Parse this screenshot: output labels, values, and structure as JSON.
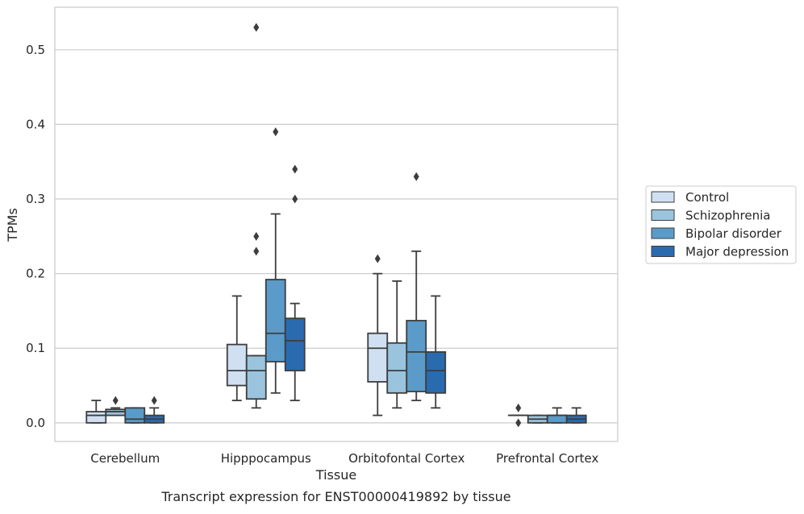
{
  "caption": "Transcript expression for ENST00000419892 by tissue",
  "chart_data": {
    "type": "box",
    "xlabel": "Tissue",
    "ylabel": "TPMs",
    "ylim": [
      -0.025,
      0.557
    ],
    "yticks": [
      "0.0",
      "0.1",
      "0.2",
      "0.3",
      "0.4",
      "0.5"
    ],
    "categories": [
      "Cerebellum",
      "Hipppocampus",
      "Orbitofontal Cortex",
      "Prefrontal Cortex"
    ],
    "grid": "horizontal",
    "legend_position": "right",
    "series": [
      {
        "name": "Control",
        "color": "#d0e0f2",
        "boxes": [
          {
            "whisker_low": 0.0,
            "q1": 0.0,
            "median": 0.01,
            "q3": 0.015,
            "whisker_high": 0.03,
            "outliers": []
          },
          {
            "whisker_low": 0.03,
            "q1": 0.05,
            "median": 0.07,
            "q3": 0.105,
            "whisker_high": 0.17,
            "outliers": []
          },
          {
            "whisker_low": 0.01,
            "q1": 0.055,
            "median": 0.1,
            "q3": 0.12,
            "whisker_high": 0.2,
            "outliers": [
              0.22
            ]
          },
          {
            "whisker_low": 0.01,
            "q1": 0.01,
            "median": 0.01,
            "q3": 0.01,
            "whisker_high": 0.01,
            "outliers": [
              0.0,
              0.02
            ]
          }
        ]
      },
      {
        "name": "Schizophrenia",
        "color": "#9ac4dd",
        "boxes": [
          {
            "whisker_low": 0.01,
            "q1": 0.01,
            "median": 0.015,
            "q3": 0.018,
            "whisker_high": 0.02,
            "outliers": [
              0.03
            ]
          },
          {
            "whisker_low": 0.02,
            "q1": 0.032,
            "median": 0.07,
            "q3": 0.09,
            "whisker_high": 0.09,
            "outliers": [
              0.23,
              0.25,
              0.53
            ]
          },
          {
            "whisker_low": 0.02,
            "q1": 0.04,
            "median": 0.07,
            "q3": 0.107,
            "whisker_high": 0.19,
            "outliers": []
          },
          {
            "whisker_low": 0.0,
            "q1": 0.0,
            "median": 0.005,
            "q3": 0.01,
            "whisker_high": 0.01,
            "outliers": []
          }
        ]
      },
      {
        "name": "Bipolar disorder",
        "color": "#5a9bc9",
        "boxes": [
          {
            "whisker_low": 0.0,
            "q1": 0.0,
            "median": 0.005,
            "q3": 0.02,
            "whisker_high": 0.02,
            "outliers": []
          },
          {
            "whisker_low": 0.04,
            "q1": 0.082,
            "median": 0.12,
            "q3": 0.192,
            "whisker_high": 0.28,
            "outliers": [
              0.39
            ]
          },
          {
            "whisker_low": 0.03,
            "q1": 0.042,
            "median": 0.095,
            "q3": 0.137,
            "whisker_high": 0.23,
            "outliers": [
              0.33
            ]
          },
          {
            "whisker_low": 0.0,
            "q1": 0.0,
            "median": 0.01,
            "q3": 0.01,
            "whisker_high": 0.02,
            "outliers": []
          }
        ]
      },
      {
        "name": "Major depression",
        "color": "#2a6aaf",
        "boxes": [
          {
            "whisker_low": 0.0,
            "q1": 0.0,
            "median": 0.005,
            "q3": 0.01,
            "whisker_high": 0.02,
            "outliers": [
              0.03
            ]
          },
          {
            "whisker_low": 0.03,
            "q1": 0.07,
            "median": 0.11,
            "q3": 0.14,
            "whisker_high": 0.16,
            "outliers": [
              0.3,
              0.34
            ]
          },
          {
            "whisker_low": 0.02,
            "q1": 0.04,
            "median": 0.07,
            "q3": 0.095,
            "whisker_high": 0.17,
            "outliers": []
          },
          {
            "whisker_low": 0.0,
            "q1": 0.0,
            "median": 0.005,
            "q3": 0.01,
            "whisker_high": 0.02,
            "outliers": []
          }
        ]
      }
    ]
  }
}
